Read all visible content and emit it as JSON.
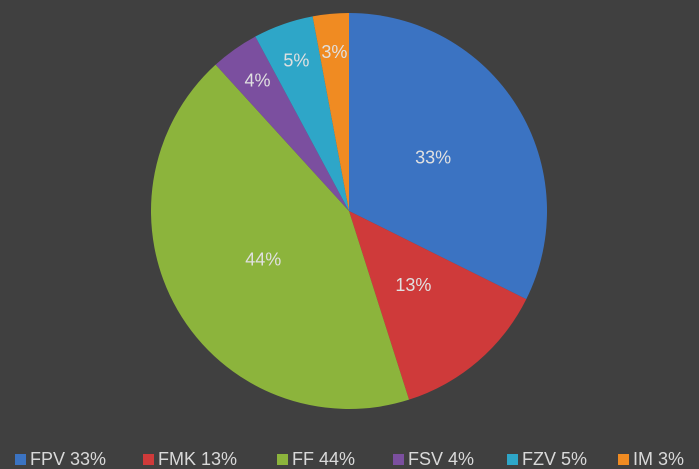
{
  "chart_data": {
    "type": "pie",
    "categories": [
      "FPV",
      "FMK",
      "FF",
      "FSV",
      "FZV",
      "IM"
    ],
    "values": [
      33,
      13,
      44,
      4,
      5,
      3
    ],
    "value_labels": [
      "33%",
      "13%",
      "44%",
      "4%",
      "5%",
      "3%"
    ],
    "colors": [
      "#3b73c2",
      "#cf3a3a",
      "#8cb43c",
      "#7b4f9f",
      "#2ea6c8",
      "#f08b22"
    ],
    "legend": "bottom"
  }
}
